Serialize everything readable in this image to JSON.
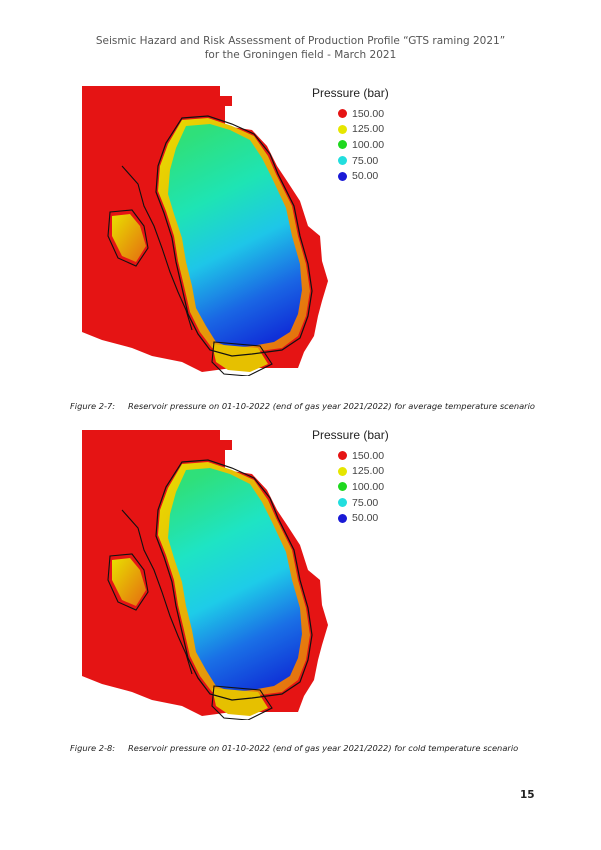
{
  "header": {
    "line1": "Seismic Hazard and Risk Assessment of Production Profile “GTS raming 2021”",
    "line2": "for the Groningen field - March 2021"
  },
  "legend": {
    "title": "Pressure (bar)",
    "items": [
      {
        "label": "150.00",
        "color": "#e51414"
      },
      {
        "label": "125.00",
        "color": "#e6e600"
      },
      {
        "label": "100.00",
        "color": "#1fd81f"
      },
      {
        "label": "75.00",
        "color": "#22dede"
      },
      {
        "label": "50.00",
        "color": "#1a1ad6"
      }
    ]
  },
  "figures": [
    {
      "number": "Figure 2-7:",
      "caption": "Reservoir pressure on 01-10-2022 (end of gas year 2021/2022) for average temperature scenario"
    },
    {
      "number": "Figure 2-8:",
      "caption": "Reservoir pressure on 01-10-2022 (end of gas year 2021/2022) for cold temperature scenario"
    }
  ],
  "page_number": "15"
}
